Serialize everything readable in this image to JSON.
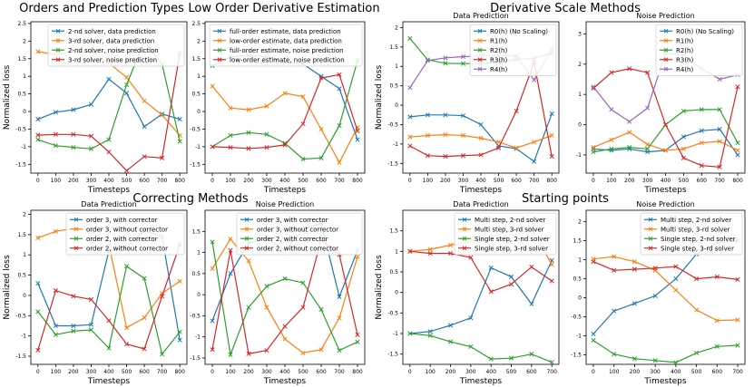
{
  "group_titles": {
    "orders": "Orders and Prediction Types",
    "lowest": "Low Order Derivative Estimation",
    "scale": "Derivative Scale Methods",
    "correcting": "Correcting Methods",
    "starting": "Starting points"
  },
  "chart_data": [
    {
      "id": "orders",
      "type": "line",
      "title": "",
      "xlabel": "Timesteps",
      "ylabel": "Normalized loss",
      "x": [
        0,
        100,
        200,
        300,
        400,
        500,
        600,
        700,
        800
      ],
      "xticks": [
        0,
        100,
        200,
        300,
        400,
        500,
        600,
        700,
        800
      ],
      "xlim": [
        -40,
        840
      ],
      "ylim": [
        -1.75,
        2.55
      ],
      "yticks": [
        -1.5,
        -1.0,
        -0.5,
        0.0,
        0.5,
        1.0,
        1.5,
        2.0,
        2.5
      ],
      "legend_position": "top-right",
      "series": [
        {
          "name": "2-nd solver, data prediction",
          "color": "#1f77b4",
          "values": [
            -0.22,
            -0.02,
            0.05,
            0.2,
            0.92,
            0.52,
            -0.43,
            -0.07,
            -0.22
          ]
        },
        {
          "name": "3-rd solver, data prediction",
          "color": "#ff7f0e",
          "values": [
            1.7,
            1.62,
            1.7,
            1.7,
            1.38,
            0.97,
            0.3,
            -0.1,
            -0.68
          ]
        },
        {
          "name": "2-nd solver, noise prediction",
          "color": "#2ca02c",
          "values": [
            -0.8,
            -0.97,
            -1.02,
            -1.06,
            -0.8,
            0.76,
            2.0,
            1.35,
            -0.85
          ]
        },
        {
          "name": "3-rd solver, noise prediction",
          "color": "#d62728",
          "values": [
            -0.67,
            -0.65,
            -0.65,
            -0.7,
            -1.15,
            -1.68,
            -1.28,
            -1.32,
            1.65
          ]
        }
      ]
    },
    {
      "id": "lowest",
      "type": "line",
      "title": "",
      "xlabel": "Timesteps",
      "ylabel": "",
      "x": [
        0,
        100,
        200,
        300,
        400,
        500,
        600,
        700,
        800
      ],
      "xticks": [
        0,
        100,
        200,
        300,
        400,
        500,
        600,
        700,
        800
      ],
      "xlim": [
        -40,
        840
      ],
      "ylim": [
        -1.75,
        2.55
      ],
      "yticks": [
        -1.5,
        -1.0,
        -0.5,
        0.0,
        0.5,
        1.0,
        1.5,
        2.0,
        2.5
      ],
      "legend_position": "top-right",
      "series": [
        {
          "name": "full-order estimate, data prediction",
          "color": "#1f77b4",
          "values": [
            1.3,
            1.55,
            1.6,
            1.55,
            1.4,
            1.35,
            1.0,
            0.65,
            -0.8
          ]
        },
        {
          "name": "low-order estimate, data prediction",
          "color": "#ff7f0e",
          "values": [
            0.72,
            0.1,
            0.05,
            0.15,
            0.52,
            0.42,
            -0.5,
            -1.45,
            -0.45
          ]
        },
        {
          "name": "full-order estimate, noise prediction",
          "color": "#2ca02c",
          "values": [
            -1.0,
            -0.68,
            -0.6,
            -0.65,
            -0.9,
            -1.35,
            -1.32,
            -0.4,
            1.45
          ]
        },
        {
          "name": "low-order estimate, noise prediction",
          "color": "#d62728",
          "values": [
            -1.0,
            -1.02,
            -1.05,
            -1.02,
            -0.95,
            -0.35,
            0.95,
            1.05,
            -0.55
          ]
        }
      ]
    },
    {
      "id": "scale-data",
      "type": "line",
      "title": "Data Prediction",
      "xlabel": "Timesteps",
      "ylabel": "Normalized loss",
      "x": [
        0,
        100,
        200,
        300,
        400,
        500,
        600,
        700,
        800
      ],
      "xticks": [
        0,
        100,
        200,
        300,
        400,
        500,
        600,
        700,
        800
      ],
      "xlim": [
        -40,
        840
      ],
      "ylim": [
        -1.75,
        2.15
      ],
      "yticks": [
        -1.5,
        -1.0,
        -0.5,
        0.0,
        0.5,
        1.0,
        1.5,
        2.0
      ],
      "legend_position": "top-right",
      "series": [
        {
          "name": "R0(h) (No Scaling)",
          "color": "#1f77b4",
          "values": [
            -0.3,
            -0.25,
            -0.25,
            -0.27,
            -0.5,
            -1.05,
            -1.12,
            -1.45,
            -0.22
          ]
        },
        {
          "name": "R1(h)",
          "color": "#ff7f0e",
          "values": [
            -0.82,
            -0.78,
            -0.76,
            -0.78,
            -0.85,
            -0.95,
            -1.1,
            -0.95,
            -0.78
          ]
        },
        {
          "name": "R2(h)",
          "color": "#2ca02c",
          "values": [
            1.72,
            1.17,
            1.08,
            1.07,
            1.07,
            1.1,
            1.18,
            1.2,
            1.35
          ]
        },
        {
          "name": "R3(h)",
          "color": "#d62728",
          "values": [
            -1.05,
            -1.3,
            -1.32,
            -1.3,
            -1.28,
            -1.1,
            -0.15,
            1.1,
            -1.32
          ]
        },
        {
          "name": "R4(h)",
          "color": "#9467bd",
          "values": [
            0.45,
            1.15,
            1.22,
            1.25,
            1.27,
            1.27,
            1.27,
            0.65,
            1.45
          ]
        }
      ]
    },
    {
      "id": "scale-noise",
      "type": "line",
      "title": "Noise Prediction",
      "xlabel": "Timesteps",
      "ylabel": "",
      "x": [
        0,
        100,
        200,
        300,
        400,
        500,
        600,
        700,
        800
      ],
      "xticks": [
        0,
        100,
        200,
        300,
        400,
        500,
        600,
        700,
        800
      ],
      "xlim": [
        -40,
        840
      ],
      "ylim": [
        -1.6,
        3.4
      ],
      "yticks": [
        -1,
        0,
        1,
        2,
        3
      ],
      "legend_position": "top-right",
      "series": [
        {
          "name": "R0(h) (No Scaling)",
          "color": "#1f77b4",
          "values": [
            -0.8,
            -0.85,
            -0.8,
            -0.9,
            -0.85,
            -0.4,
            -0.2,
            -0.15,
            -1.0
          ]
        },
        {
          "name": "R1(h)",
          "color": "#ff7f0e",
          "values": [
            -0.75,
            -0.5,
            -0.25,
            -0.65,
            -0.85,
            -0.8,
            -0.6,
            -0.55,
            -0.85
          ]
        },
        {
          "name": "R2(h)",
          "color": "#2ca02c",
          "values": [
            -0.9,
            -0.8,
            -0.75,
            -0.8,
            0.0,
            0.45,
            0.5,
            0.5,
            -0.6
          ]
        },
        {
          "name": "R3(h)",
          "color": "#d62728",
          "values": [
            1.2,
            1.72,
            1.85,
            1.72,
            0.0,
            -1.1,
            -1.35,
            -1.4,
            1.25
          ]
        },
        {
          "name": "R4(h)",
          "color": "#9467bd",
          "values": [
            1.25,
            0.5,
            0.1,
            0.55,
            2.35,
            2.3,
            1.85,
            1.5,
            1.65
          ]
        }
      ]
    },
    {
      "id": "correct-data",
      "type": "line",
      "title": "Data Prediction",
      "xlabel": "Timesteps",
      "ylabel": "Normalized loss",
      "x": [
        0,
        100,
        200,
        300,
        400,
        500,
        600,
        700,
        800
      ],
      "xticks": [
        0,
        100,
        200,
        300,
        400,
        500,
        600,
        700,
        800
      ],
      "xlim": [
        -40,
        840
      ],
      "ylim": [
        -1.7,
        2.1
      ],
      "yticks": [
        -1.5,
        -1.0,
        -0.5,
        0.0,
        0.5,
        1.0,
        1.5,
        2.0
      ],
      "legend_position": "top-right",
      "series": [
        {
          "name": "order 3, with corrector",
          "color": "#1f77b4",
          "values": [
            0.3,
            -0.75,
            -0.75,
            -0.72,
            1.1,
            1.2,
            1.6,
            1.45,
            -1.1
          ]
        },
        {
          "name": "order 3, without corrector",
          "color": "#ff7f0e",
          "values": [
            1.42,
            1.58,
            1.65,
            1.6,
            1.25,
            -0.8,
            -0.55,
            0.05,
            0.35
          ]
        },
        {
          "name": "order 2, with corrector",
          "color": "#2ca02c",
          "values": [
            -0.4,
            -0.97,
            -0.88,
            -0.85,
            -1.3,
            0.72,
            0.42,
            -1.45,
            -0.9
          ]
        },
        {
          "name": "order 2, without corrector",
          "color": "#d62728",
          "values": [
            -1.35,
            0.12,
            -0.02,
            -0.1,
            -0.62,
            -1.2,
            -1.32,
            -0.02,
            1.25
          ]
        }
      ]
    },
    {
      "id": "correct-noise",
      "type": "line",
      "title": "Noise Prediction",
      "xlabel": "Timesteps",
      "ylabel": "",
      "x": [
        0,
        100,
        200,
        300,
        400,
        500,
        600,
        700,
        800
      ],
      "xticks": [
        0,
        100,
        200,
        300,
        400,
        500,
        600,
        700,
        800
      ],
      "xlim": [
        -40,
        840
      ],
      "ylim": [
        -1.65,
        2.0
      ],
      "yticks": [
        -1.5,
        -1.0,
        -0.5,
        0.0,
        0.5,
        1.0,
        1.5
      ],
      "legend_position": "top-right",
      "series": [
        {
          "name": "order 3, with corrector",
          "color": "#1f77b4",
          "values": [
            -0.62,
            0.5,
            1.22,
            1.35,
            1.05,
            1.55,
            1.7,
            -0.05,
            1.05
          ]
        },
        {
          "name": "order 3, without corrector",
          "color": "#ff7f0e",
          "values": [
            0.62,
            1.32,
            0.8,
            -0.3,
            -1.05,
            -1.38,
            -1.3,
            -0.55,
            0.9
          ]
        },
        {
          "name": "order 2, with corrector",
          "color": "#2ca02c",
          "values": [
            1.25,
            -1.42,
            -0.3,
            0.2,
            0.38,
            0.28,
            -0.35,
            -1.32,
            -1.12
          ]
        },
        {
          "name": "order 2, without corrector",
          "color": "#d62728",
          "values": [
            -1.3,
            1.05,
            -1.4,
            -1.32,
            -0.75,
            -0.3,
            1.3,
            0.95,
            -0.95
          ]
        }
      ]
    },
    {
      "id": "start-data",
      "type": "line",
      "title": "Data Prediction",
      "xlabel": "Timesteps",
      "ylabel": "Normalized loss",
      "x": [
        0,
        100,
        200,
        300,
        400,
        500,
        600,
        700
      ],
      "xticks": [
        0,
        100,
        200,
        300,
        400,
        500,
        600,
        700
      ],
      "xlim": [
        -35,
        735
      ],
      "ylim": [
        -1.75,
        2.0
      ],
      "yticks": [
        -1.5,
        -1.0,
        -0.5,
        0.0,
        0.5,
        1.0,
        1.5
      ],
      "legend_position": "top-right",
      "series": [
        {
          "name": "Multi step, 2-nd solver",
          "color": "#1f77b4",
          "values": [
            -1.0,
            -0.95,
            -0.8,
            -0.62,
            0.6,
            0.38,
            -0.28,
            0.78
          ]
        },
        {
          "name": "Multi step, 3-rd solver",
          "color": "#ff7f0e",
          "values": [
            1.0,
            1.05,
            1.15,
            1.25,
            1.35,
            1.5,
            1.55,
            0.68
          ]
        },
        {
          "name": "Single step, 2-nd solver",
          "color": "#2ca02c",
          "values": [
            -1.0,
            -1.05,
            -1.2,
            -1.32,
            -1.62,
            -1.6,
            -1.5,
            -1.7
          ]
        },
        {
          "name": "Single step, 3-rd solver",
          "color": "#d62728",
          "values": [
            1.0,
            0.95,
            0.95,
            0.85,
            0.02,
            0.2,
            0.62,
            0.28
          ]
        }
      ]
    },
    {
      "id": "start-noise",
      "type": "line",
      "title": "Noise Prediction",
      "xlabel": "Timesteps",
      "ylabel": "",
      "x": [
        0,
        100,
        200,
        300,
        400,
        500,
        600,
        700
      ],
      "xticks": [
        0,
        100,
        200,
        300,
        400,
        500,
        600,
        700
      ],
      "xlim": [
        -35,
        735
      ],
      "ylim": [
        -1.75,
        2.3
      ],
      "yticks": [
        -1.5,
        -1.0,
        -0.5,
        0.0,
        0.5,
        1.0,
        1.5,
        2.0
      ],
      "legend_position": "top-right",
      "series": [
        {
          "name": "Multi step, 2-nd solver",
          "color": "#1f77b4",
          "values": [
            -0.95,
            -0.35,
            -0.15,
            0.05,
            0.5,
            1.15,
            1.45,
            1.5
          ]
        },
        {
          "name": "Multi step, 3-rd solver",
          "color": "#ff7f0e",
          "values": [
            1.02,
            1.08,
            0.95,
            0.72,
            0.2,
            -0.32,
            -0.6,
            -0.58
          ]
        },
        {
          "name": "Single step, 2-nd solver",
          "color": "#2ca02c",
          "values": [
            -1.12,
            -1.48,
            -1.6,
            -1.65,
            -1.7,
            -1.45,
            -1.28,
            -1.25
          ]
        },
        {
          "name": "Single step, 3-rd solver",
          "color": "#d62728",
          "values": [
            0.95,
            0.72,
            0.75,
            0.78,
            0.82,
            0.5,
            0.55,
            0.48
          ]
        }
      ]
    }
  ]
}
